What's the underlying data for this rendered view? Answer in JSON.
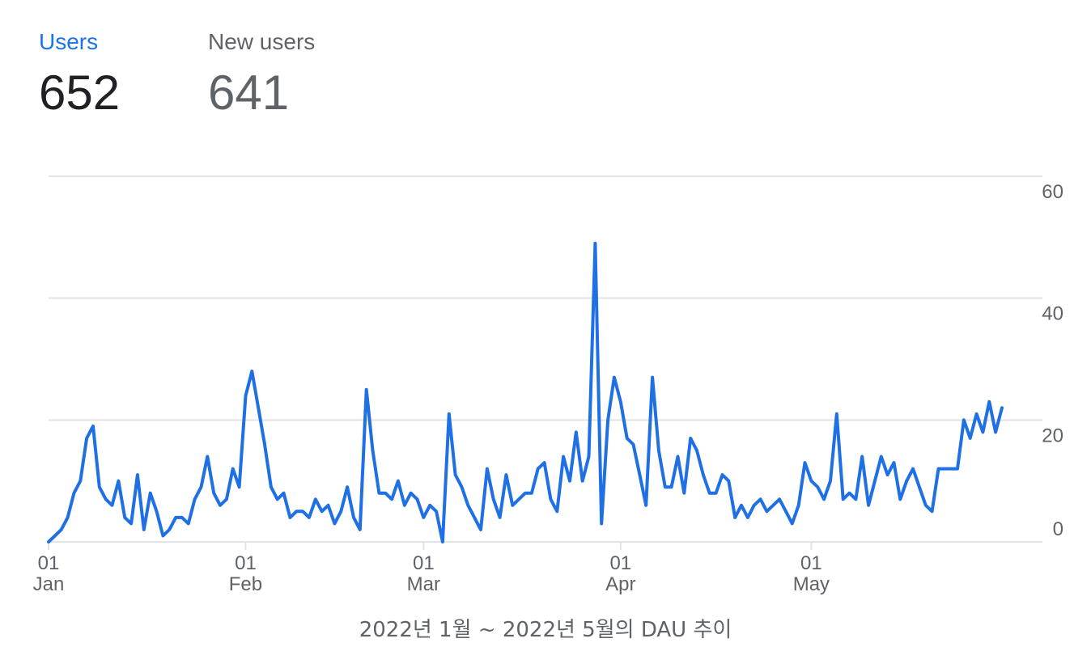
{
  "metrics": {
    "users": {
      "label": "Users",
      "value": "652"
    },
    "new_users": {
      "label": "New users",
      "value": "641"
    }
  },
  "colors": {
    "accent": "#1a73e8",
    "line": "#1f6fe5",
    "grid": "#e3e3e3",
    "text_secondary": "#5f6368",
    "text_primary": "#202124"
  },
  "chart_data": {
    "type": "line",
    "title": "",
    "xlabel": "",
    "ylabel": "",
    "ylim": [
      0,
      60
    ],
    "y_ticks": [
      0,
      20,
      40,
      60
    ],
    "y_axis_side": "right",
    "grid": true,
    "x_ticks": [
      {
        "date": "2022-01-01",
        "day": "01",
        "month": "Jan"
      },
      {
        "date": "2022-02-01",
        "day": "01",
        "month": "Feb"
      },
      {
        "date": "2022-03-01",
        "day": "01",
        "month": "Mar"
      },
      {
        "date": "2022-04-01",
        "day": "01",
        "month": "Apr"
      },
      {
        "date": "2022-05-01",
        "day": "01",
        "month": "May"
      }
    ],
    "series": [
      {
        "x_start": "2022-01-01",
        "x_end": "2022-05-31",
        "values": [
          0,
          1,
          2,
          4,
          8,
          10,
          17,
          19,
          9,
          7,
          6,
          10,
          4,
          3,
          11,
          2,
          8,
          5,
          1,
          2,
          4,
          4,
          3,
          7,
          9,
          14,
          8,
          6,
          7,
          12,
          9,
          24,
          28,
          22,
          16,
          9,
          7,
          8,
          4,
          5,
          5,
          4,
          7,
          5,
          6,
          3,
          5,
          9,
          4,
          2,
          25,
          15,
          8,
          8,
          7,
          10,
          6,
          8,
          7,
          4,
          6,
          5,
          0,
          21,
          11,
          9,
          6,
          4,
          2,
          12,
          7,
          4,
          11,
          6,
          7,
          8,
          8,
          12,
          13,
          7,
          5,
          14,
          10,
          18,
          10,
          14,
          49,
          3,
          20,
          27,
          23,
          17,
          16,
          11,
          6,
          27,
          15,
          9,
          9,
          14,
          8,
          17,
          15,
          11,
          8,
          8,
          11,
          10,
          4,
          6,
          4,
          6,
          7,
          5,
          6,
          7,
          5,
          3,
          6,
          13,
          10,
          9,
          7,
          10,
          21,
          7,
          8,
          7,
          14,
          6,
          10,
          14,
          11,
          13,
          7,
          10,
          12,
          9,
          6,
          5,
          12,
          12,
          12,
          12,
          20,
          17,
          21,
          18,
          23,
          18,
          22
        ]
      }
    ]
  },
  "caption": "2022년 1월 ~ 2022년 5월의 DAU 추이"
}
